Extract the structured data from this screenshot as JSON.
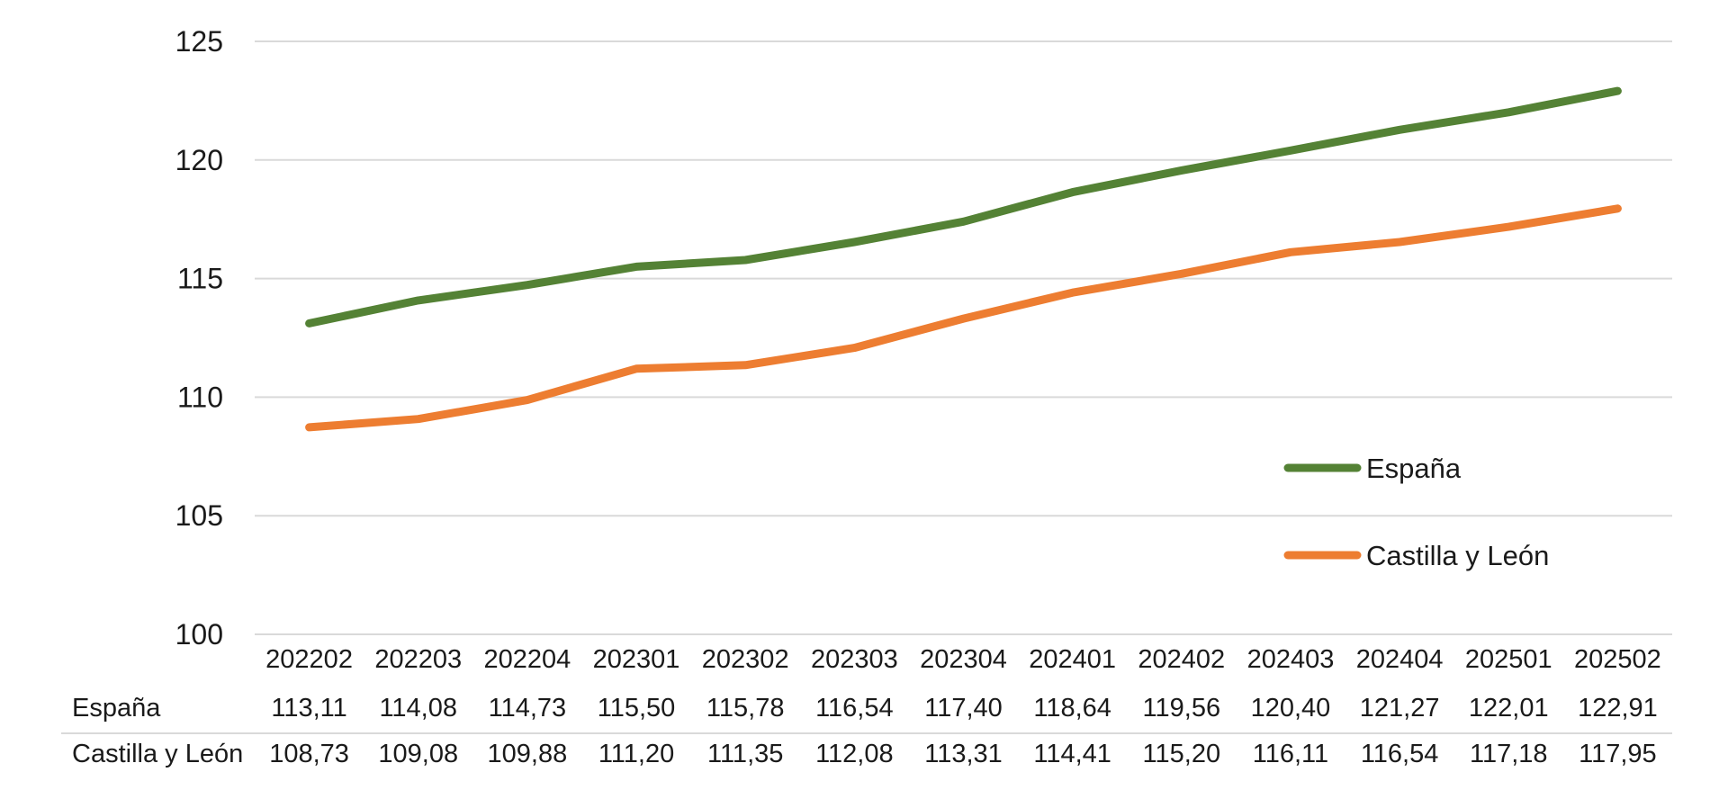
{
  "chart_data": {
    "type": "line",
    "title": "",
    "xlabel": "",
    "ylabel": "",
    "ylim": [
      100,
      125
    ],
    "yticks": [
      "100",
      "105",
      "110",
      "115",
      "120",
      "125"
    ],
    "grid": true,
    "legend_position": "right",
    "categories": [
      "202202",
      "202203",
      "202204",
      "202301",
      "202302",
      "202303",
      "202304",
      "202401",
      "202402",
      "202403",
      "202404",
      "202501",
      "202502"
    ],
    "series": [
      {
        "name": "España",
        "color": "#548235",
        "values": [
          113.11,
          114.08,
          114.73,
          115.5,
          115.78,
          116.54,
          117.4,
          118.64,
          119.56,
          120.4,
          121.27,
          122.01,
          122.91
        ],
        "labels": [
          "113,11",
          "114,08",
          "114,73",
          "115,50",
          "115,78",
          "116,54",
          "117,40",
          "118,64",
          "119,56",
          "120,40",
          "121,27",
          "122,01",
          "122,91"
        ]
      },
      {
        "name": "Castilla y León",
        "color": "#ED7D31",
        "values": [
          108.73,
          109.08,
          109.88,
          111.2,
          111.35,
          112.08,
          113.31,
          114.41,
          115.2,
          116.11,
          116.54,
          117.18,
          117.95
        ],
        "labels": [
          "108,73",
          "109,08",
          "109,88",
          "111,20",
          "111,35",
          "112,08",
          "113,31",
          "114,41",
          "115,20",
          "116,11",
          "116,54",
          "117,18",
          "117,95"
        ]
      }
    ],
    "grid_color": "#d9d9d9"
  }
}
